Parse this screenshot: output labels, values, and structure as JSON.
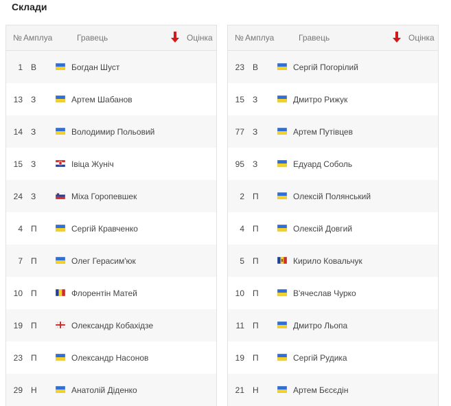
{
  "title": "Склади",
  "columns": {
    "number": "№",
    "role": "Амплуа",
    "player": "Гравець",
    "rating": "Оцінка"
  },
  "colors": {
    "sort_arrow": "#d11a1a"
  },
  "left_team": [
    {
      "number": "1",
      "role": "В",
      "flag": "ukraine",
      "name": "Богдан Шуст"
    },
    {
      "number": "13",
      "role": "З",
      "flag": "ukraine",
      "name": "Артем Шабанов"
    },
    {
      "number": "14",
      "role": "З",
      "flag": "ukraine",
      "name": "Володимир Польовий"
    },
    {
      "number": "15",
      "role": "З",
      "flag": "croatia",
      "name": "Івіца Жуніч"
    },
    {
      "number": "24",
      "role": "З",
      "flag": "slovenia",
      "name": "Міха Горопевшек"
    },
    {
      "number": "4",
      "role": "П",
      "flag": "ukraine",
      "name": "Сергій Кравченко"
    },
    {
      "number": "7",
      "role": "П",
      "flag": "ukraine",
      "name": "Олег Герасим'юк"
    },
    {
      "number": "10",
      "role": "П",
      "flag": "romania",
      "name": "Флорентін Матей"
    },
    {
      "number": "19",
      "role": "П",
      "flag": "georgia",
      "name": "Олександр Кобахідзе"
    },
    {
      "number": "23",
      "role": "П",
      "flag": "ukraine",
      "name": "Олександр Насонов"
    },
    {
      "number": "29",
      "role": "Н",
      "flag": "ukraine",
      "name": "Анатолій Діденко"
    }
  ],
  "right_team": [
    {
      "number": "23",
      "role": "В",
      "flag": "ukraine",
      "name": "Сергій Погорілий"
    },
    {
      "number": "15",
      "role": "З",
      "flag": "ukraine",
      "name": "Дмитро Рижук"
    },
    {
      "number": "77",
      "role": "З",
      "flag": "ukraine",
      "name": "Артем Путівцев"
    },
    {
      "number": "95",
      "role": "З",
      "flag": "ukraine",
      "name": "Едуард Соболь"
    },
    {
      "number": "2",
      "role": "П",
      "flag": "ukraine",
      "name": "Олексій Полянський"
    },
    {
      "number": "4",
      "role": "П",
      "flag": "ukraine",
      "name": "Олексій Довгий"
    },
    {
      "number": "5",
      "role": "П",
      "flag": "moldova",
      "name": "Кирило Ковальчук"
    },
    {
      "number": "10",
      "role": "П",
      "flag": "ukraine",
      "name": "В'ячеслав Чурко"
    },
    {
      "number": "11",
      "role": "П",
      "flag": "ukraine",
      "name": "Дмитро Льопа"
    },
    {
      "number": "19",
      "role": "П",
      "flag": "ukraine",
      "name": "Сергій Рудика"
    },
    {
      "number": "21",
      "role": "Н",
      "flag": "ukraine",
      "name": "Артем Бєсєдін"
    }
  ]
}
